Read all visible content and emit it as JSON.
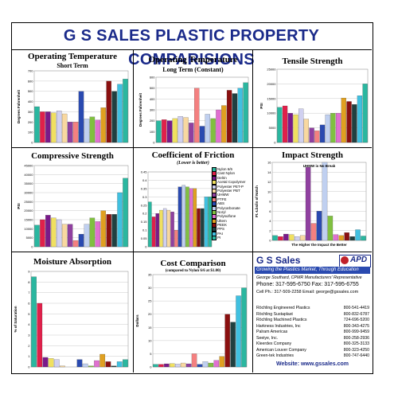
{
  "page_title": "G S SALES PLASTIC  PROPERTY COMPARISIONS",
  "colors": [
    "#2ab7a0",
    "#e0204a",
    "#7a1a8a",
    "#f0e060",
    "#d0d0f0",
    "#f8d8a0",
    "#9040a0",
    "#f48080",
    "#2a4ab0",
    "#c0d0f0",
    "#80c040",
    "#e070d0",
    "#e0a020",
    "#8a1010",
    "#204040",
    "#40c0e0"
  ],
  "legend": [
    "Nylon 6/6",
    "Cast Nylon",
    "Delrin",
    "Acetal Copolymer",
    "Polyester PET-P",
    "Polyester PBT",
    "UHMW",
    "PTFE",
    "ABS",
    "Polycarbonate",
    "Noryl",
    "Polysulfone",
    "Ultem",
    "PEEK",
    "PPS",
    "PAI",
    "PI"
  ],
  "chart_data": [
    {
      "type": "bar",
      "title": "Operating Temperature",
      "subtitle": "Short Term",
      "ylabel": "Degrees Fahrenheit",
      "ylim": [
        0,
        700
      ],
      "ticks": [
        0,
        100,
        200,
        300,
        400,
        500,
        600,
        700
      ],
      "values": [
        350,
        300,
        300,
        290,
        310,
        280,
        200,
        200,
        500,
        230,
        250,
        220,
        340,
        600,
        500,
        570,
        620
      ]
    },
    {
      "type": "bar",
      "title": "Operating Temperature",
      "subtitle": "Long Term (Constant)",
      "ylabel": "Degrees Fahrenheit",
      "ylim": [
        0,
        600
      ],
      "ticks": [
        0,
        100,
        200,
        300,
        400,
        500,
        600
      ],
      "values": [
        200,
        210,
        200,
        220,
        240,
        230,
        180,
        500,
        150,
        260,
        220,
        300,
        340,
        480,
        450,
        500,
        550
      ]
    },
    {
      "type": "bar",
      "title": "Tensile Strength",
      "subtitle": "",
      "ylabel": "PSI",
      "ylim": [
        0,
        25000
      ],
      "ticks": [
        0,
        5000,
        10000,
        15000,
        20000,
        25000
      ],
      "values": [
        12000,
        12500,
        10000,
        9500,
        11500,
        8000,
        5000,
        4000,
        6000,
        9500,
        10000,
        10000,
        15200,
        14000,
        13000,
        16000,
        20000
      ]
    },
    {
      "type": "bar",
      "title": "Compressive Strength",
      "subtitle": "",
      "ylabel": "PSI",
      "ylim": [
        0,
        45000
      ],
      "ticks": [
        0,
        5000,
        10000,
        15000,
        20000,
        25000,
        30000,
        35000,
        40000,
        45000
      ],
      "values": [
        12000,
        15000,
        17500,
        16000,
        15000,
        12500,
        12500,
        3500,
        7000,
        12500,
        16000,
        14000,
        20000,
        18000,
        18000,
        30000,
        38000
      ]
    },
    {
      "type": "bar",
      "title": "Coefficient of Friction",
      "subtitle": "(Lower is better)",
      "ylabel": "",
      "ylim": [
        0,
        0.45
      ],
      "ticks": [
        0,
        0.05,
        0.1,
        0.15,
        0.2,
        0.25,
        0.3,
        0.35,
        0.4,
        0.45
      ],
      "values": [
        0.27,
        0.18,
        0.2,
        0.22,
        0.23,
        0.22,
        0.21,
        0.1,
        0.36,
        0.37,
        0.36,
        0.35,
        0.35,
        0.23,
        0.23,
        0.3,
        0.3
      ]
    },
    {
      "type": "bar",
      "title": "Impact Strength",
      "subtitle": "",
      "ylabel": "Ft.-Lbs/in of Notch",
      "xlabel": "The Higher the Impact the Better",
      "ylim": [
        0,
        16
      ],
      "ticks": [
        0,
        2,
        4,
        6,
        8,
        10,
        12,
        14,
        16
      ],
      "values": [
        1,
        0.8,
        1.3,
        1.2,
        0.8,
        1,
        15,
        3.5,
        6,
        16,
        5,
        1.2,
        1,
        1.6,
        0.8,
        2.2,
        0.9
      ],
      "annotation": "UHMW is No Break"
    },
    {
      "type": "bar",
      "title": "Moisture Absorption",
      "subtitle": "",
      "ylabel": "% of Saturation",
      "ylim": [
        0,
        9
      ],
      "ticks": [
        0,
        1,
        2,
        3,
        4,
        5,
        6,
        7,
        8,
        9
      ],
      "values": [
        8.5,
        6,
        0.9,
        0.8,
        0.7,
        0.1,
        0,
        0,
        0.7,
        0.3,
        0.1,
        0.6,
        1.2,
        0.5,
        0.1,
        0.5,
        0.7
      ]
    },
    {
      "type": "bar",
      "title": "Cost Comparison",
      "subtitle": "(compared to Nylon 6/6 at $1.00)",
      "ylabel": "Dollars",
      "ylim": [
        0,
        35
      ],
      "ticks": [
        0,
        5,
        10,
        15,
        20,
        25,
        30,
        35
      ],
      "values": [
        1,
        1,
        1.2,
        1.3,
        1.1,
        1.5,
        1.2,
        5,
        1,
        2,
        1.5,
        2.5,
        4,
        20,
        17,
        27,
        30
      ]
    }
  ],
  "info": {
    "company": "G S Sales",
    "apd": "APD",
    "tagline": "Growing the Plastics Market, Through Education",
    "person": "George Southard, CPMR  Manufacturers' Representative",
    "phone": "Phone: 317-595-6750   Fax: 317-595-6755",
    "cell": "Cell Ph.: 317-509-2258   Email: george@gssales.com",
    "companies": [
      {
        "name": "Röchling Engineered Plastics",
        "phone": "800-541-4419"
      },
      {
        "name": "Röchling Sustaplast",
        "phone": "800-832-6787"
      },
      {
        "name": "Röchling Machined Plastics",
        "phone": "724-696-5200"
      },
      {
        "name": "Harkness Industries, Inc",
        "phone": "800-343-4275"
      },
      {
        "name": "Palram Americas",
        "phone": "800-999-9459"
      },
      {
        "name": "Seeiye, Inc.",
        "phone": "800-258-2936"
      },
      {
        "name": "Kleerdex Company",
        "phone": "800-325-3133"
      },
      {
        "name": "American Louver Company",
        "phone": "800-323-4250"
      },
      {
        "name": "Green-tek Industries",
        "phone": "800-747-6440"
      }
    ],
    "website": "Website: www.gssales.com"
  }
}
